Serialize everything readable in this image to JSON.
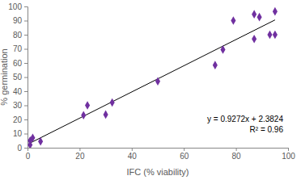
{
  "chart_data": {
    "type": "scatter",
    "x_label": "IFC (% viability)",
    "y_label": "% germination",
    "x": [
      1,
      1,
      2,
      5,
      21.5,
      23,
      30,
      32.5,
      50,
      72,
      75,
      79,
      87,
      87,
      89,
      93,
      95,
      95
    ],
    "y": [
      5,
      2,
      7,
      4.5,
      23,
      30,
      23.5,
      32,
      47,
      58.5,
      69.5,
      90,
      77,
      94.5,
      92.5,
      80,
      80,
      96.5
    ],
    "color": "#7030a0",
    "marker": "diamond",
    "xlim": [
      0,
      100
    ],
    "xticks": [
      0,
      20,
      40,
      60,
      80,
      100
    ],
    "ylim": [
      0,
      100
    ],
    "yticks": [
      0,
      10,
      20,
      30,
      40,
      50,
      60,
      70,
      80,
      90,
      100
    ],
    "grid": false,
    "trendline": {
      "slope": 0.9272,
      "intercept": 2.3824,
      "color": "#000000"
    },
    "annotations": [
      "y = 0.9272x + 2.3824",
      "R² = 0.96"
    ]
  }
}
